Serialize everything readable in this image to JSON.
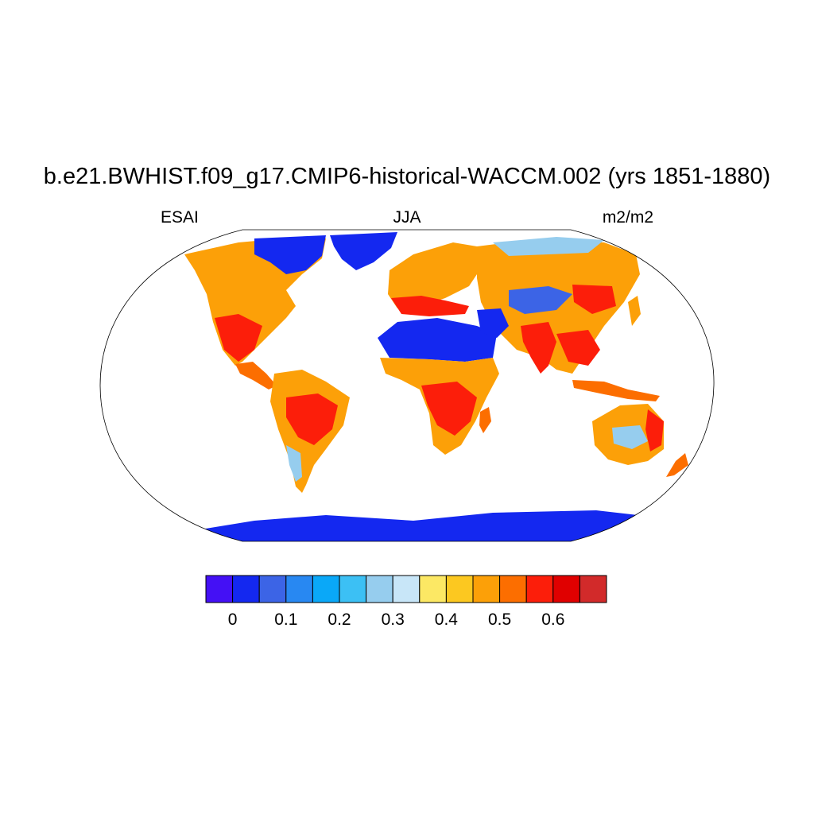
{
  "title": "b.e21.BWHIST.f09_g17.CMIP6-historical-WACCM.002 (yrs 1851-1880)",
  "left_label": "ESAI",
  "center_label": "JJA",
  "right_label": "m2/m2",
  "colorbar": {
    "colors": [
      "#4410f5",
      "#1428f0",
      "#3c64e6",
      "#2888f2",
      "#0aa8f8",
      "#3cc0f4",
      "#96cdee",
      "#c8e6f8",
      "#fce864",
      "#fcc820",
      "#fca008",
      "#fc6e00",
      "#fc1e0a",
      "#e00000",
      "#d22a2a"
    ],
    "tick_labels": [
      "0",
      "0.1",
      "0.2",
      "0.3",
      "0.4",
      "0.5",
      "0.6"
    ]
  },
  "map_legend_colors": {
    "ice_or_desert": "#1428f0",
    "land_high": "#fc1e0a",
    "land_mid": "#fca008",
    "land_low": "#96cdee",
    "border": "#000000"
  }
}
